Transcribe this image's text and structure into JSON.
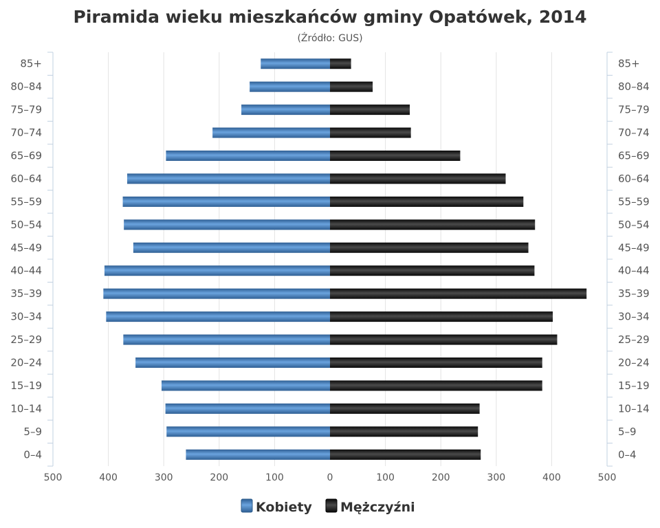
{
  "chart_data": {
    "type": "bar",
    "orientation": "horizontal-pyramid",
    "title": "Piramida wieku mieszkańców gminy Opatówek, 2014",
    "subtitle": "(Źródło: GUS)",
    "categories": [
      "85+",
      "80-84",
      "75-79",
      "70-74",
      "65-69",
      "60-64",
      "55-59",
      "50-54",
      "45-49",
      "40-44",
      "35-39",
      "30-34",
      "25-29",
      "20-24",
      "15-19",
      "10-14",
      "5-9",
      "0-4"
    ],
    "series": [
      {
        "name": "Kobiety",
        "color": "#4a86c5",
        "values": [
          125,
          145,
          160,
          212,
          296,
          366,
          374,
          372,
          355,
          407,
          409,
          404,
          373,
          351,
          304,
          297,
          295,
          260
        ]
      },
      {
        "name": "Mężczyźni",
        "color": "#1a1a1a",
        "values": [
          38,
          77,
          144,
          146,
          235,
          317,
          349,
          370,
          358,
          369,
          463,
          402,
          410,
          383,
          383,
          270,
          267,
          272
        ]
      }
    ],
    "xlim": [
      -500,
      500
    ],
    "x_ticks": [
      "500",
      "400",
      "300",
      "200",
      "100",
      "0",
      "100",
      "200",
      "300",
      "400",
      "500"
    ],
    "grid": true,
    "legend_position": "bottom-center"
  }
}
